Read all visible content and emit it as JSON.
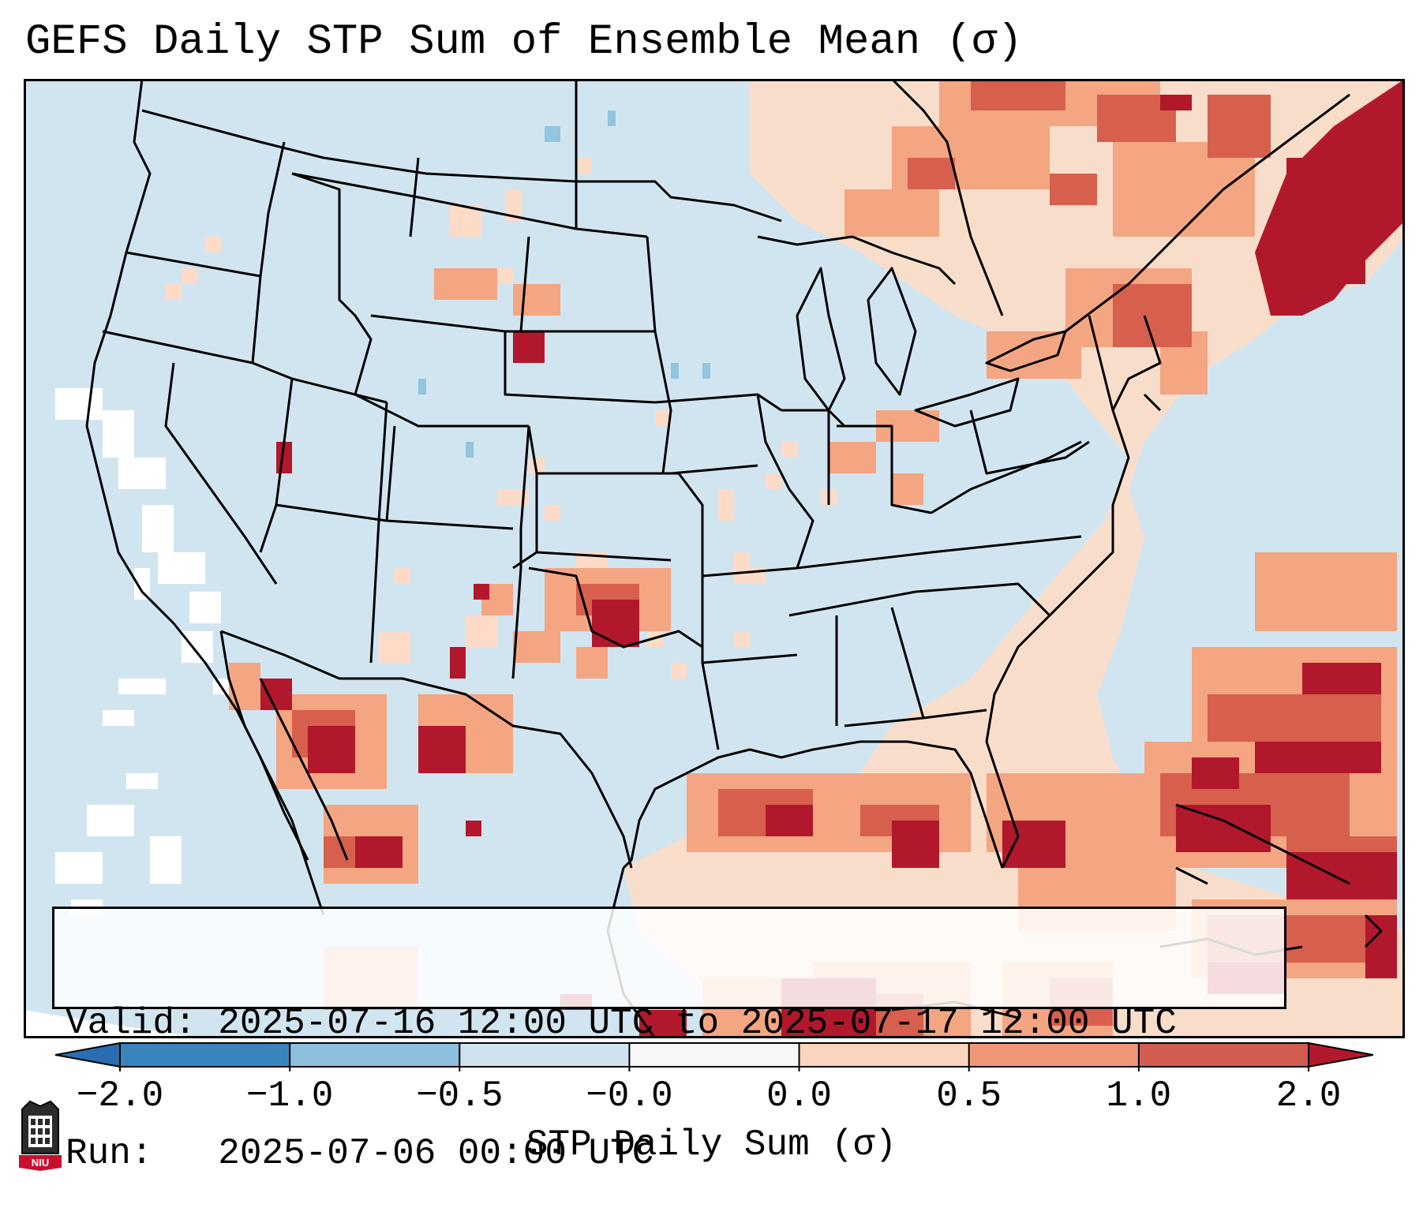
{
  "title": "GEFS Daily STP Sum of Ensemble Mean (σ)",
  "info": {
    "valid_label": "Valid:",
    "valid_value": "2025-07-16 12:00 UTC to 2025-07-17 12:00 UTC",
    "run_label": "Run:",
    "run_value": "2025-07-06 00:00 UTC"
  },
  "colorbar": {
    "label": "STP Daily Sum (σ)",
    "ticks": [
      "−2.0",
      "−1.0",
      "−0.5",
      "−0.0",
      "0.0",
      "0.5",
      "1.0",
      "2.0"
    ],
    "colors": [
      "#3a84bd",
      "#8cc0de",
      "#cfe3ef",
      "#f7f7f7",
      "#fbd4bd",
      "#ee9877",
      "#d05d4f",
      "#b2182b"
    ],
    "extend_low": "#2a6db0",
    "extend_high": "#a50f23"
  },
  "map_colors": {
    "background": "#d1e5f0",
    "outside_domain": "#ffffff",
    "light_positive": "#fddbc7",
    "medium_positive": "#f4a582",
    "strong_positive": "#d6604d",
    "extreme_positive": "#b2182b",
    "light_negative": "#92c5de",
    "boundaries": "#000000"
  },
  "logo": {
    "text": "NIU"
  }
}
